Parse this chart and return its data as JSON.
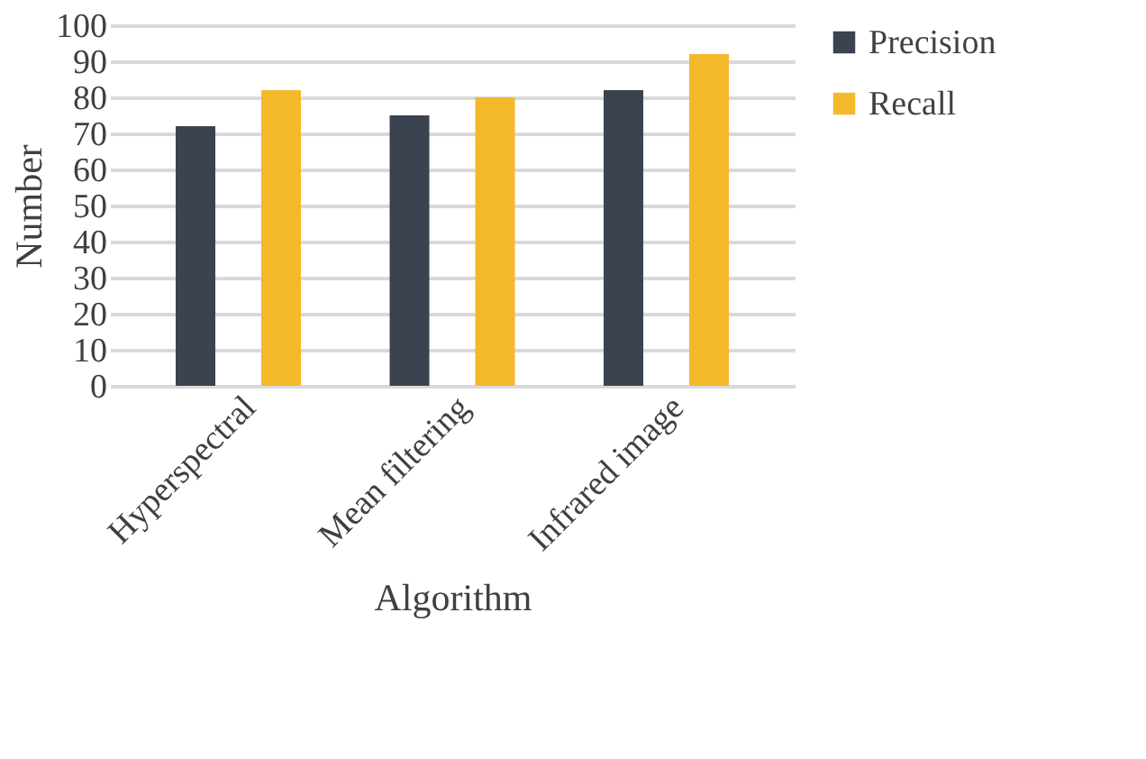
{
  "chart_data": {
    "type": "bar",
    "xlabel": "Algorithm",
    "ylabel": "Number",
    "categories": [
      "Hyperspectral",
      "Mean filtering",
      "Infrared image"
    ],
    "series": [
      {
        "name": "Precision",
        "color": "#3b4250",
        "values": [
          72,
          75,
          82
        ]
      },
      {
        "name": "Recall",
        "color": "#f4b92b",
        "values": [
          82,
          80,
          92
        ]
      }
    ],
    "ylim": [
      0,
      100
    ],
    "yticks": [
      0,
      10,
      20,
      30,
      40,
      50,
      60,
      70,
      80,
      90,
      100
    ],
    "grid": "y",
    "legend": "right"
  }
}
